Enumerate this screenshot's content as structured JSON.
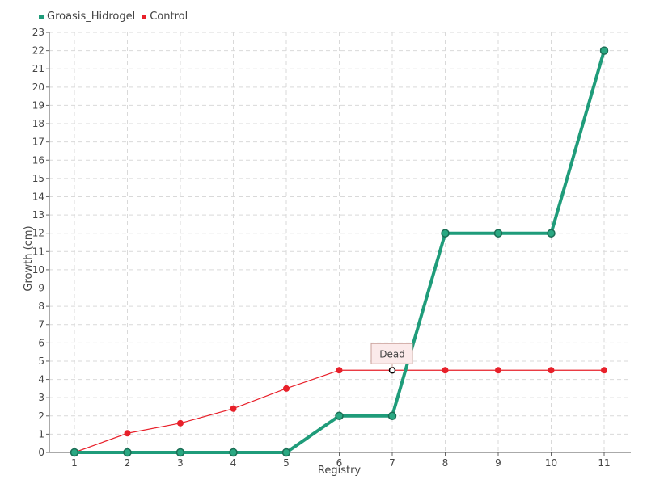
{
  "chart_data": {
    "type": "line",
    "title": "",
    "xlabel": "Registry",
    "ylabel": "Growth (cm)",
    "categories": [
      "1",
      "2",
      "3",
      "4",
      "5",
      "6",
      "7",
      "8",
      "9",
      "10",
      "11"
    ],
    "ylim": [
      0,
      23
    ],
    "yticks": [
      "0",
      "1",
      "2",
      "3",
      "4",
      "5",
      "6",
      "7",
      "8",
      "9",
      "10",
      "11",
      "12",
      "13",
      "14",
      "15",
      "16",
      "17",
      "18",
      "19",
      "20",
      "21",
      "22",
      "23"
    ],
    "grid": true,
    "legend_position": "top-left",
    "series": [
      {
        "name": "Groasis_Hidrogel",
        "color": "#1f9c7a",
        "values": [
          0,
          0,
          0,
          0,
          0,
          2,
          2,
          12,
          12,
          12,
          22
        ]
      },
      {
        "name": "Control",
        "color": "#e8202a",
        "values": [
          0,
          1.05,
          1.6,
          2.4,
          3.5,
          4.5,
          4.5,
          4.5,
          4.5,
          4.5,
          4.5
        ]
      }
    ],
    "annotations": [
      {
        "text": "Dead",
        "series": "Control",
        "category": "7",
        "value": 4.5
      }
    ]
  }
}
